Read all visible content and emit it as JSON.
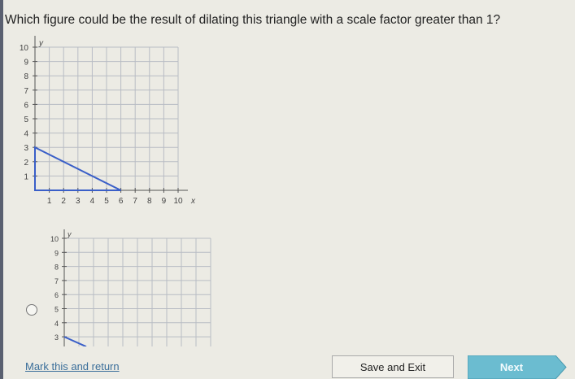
{
  "question": "Which figure could be the result of dilating this triangle with a scale factor greater than 1?",
  "given_graph": {
    "x_label": "x",
    "y_label": "y",
    "x_ticks": [
      "1",
      "2",
      "3",
      "4",
      "5",
      "6",
      "7",
      "8",
      "9",
      "10"
    ],
    "y_ticks": [
      "1",
      "2",
      "3",
      "4",
      "5",
      "6",
      "7",
      "8",
      "9",
      "10"
    ],
    "triangle_vertices": [
      [
        0,
        0
      ],
      [
        0,
        3
      ],
      [
        6,
        0
      ]
    ],
    "line_color": "#3a5fc8"
  },
  "option_graph": {
    "y_label": "y",
    "y_ticks": [
      "3",
      "4",
      "5",
      "6",
      "7",
      "8",
      "9",
      "10"
    ],
    "visible_segment": [
      [
        0,
        3
      ],
      [
        1.5,
        2.3
      ]
    ]
  },
  "footer": {
    "mark_label": "Mark this and return",
    "save_label": "Save and Exit",
    "next_label": "Next",
    "next_color": "#6bbcd0"
  }
}
